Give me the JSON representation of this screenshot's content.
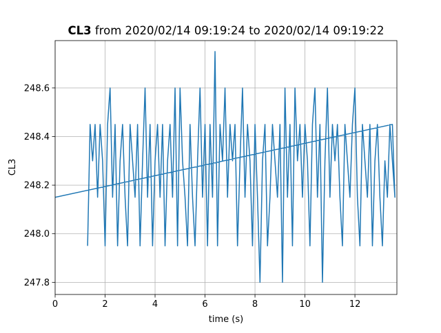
{
  "chart_data": {
    "type": "line",
    "title": {
      "bold": "CL3",
      "rest": "from 2020/02/14 09:19:24 to 2020/02/14 09:19:22"
    },
    "xlabel": "time (s)",
    "ylabel": "CL3",
    "xlim": [
      0,
      13.68
    ],
    "ylim": [
      247.75,
      248.795
    ],
    "xticks": [
      0,
      2,
      4,
      6,
      8,
      10,
      12
    ],
    "yticks": [
      247.8,
      {
        "value": 248,
        "label": "248.0"
      },
      248.2,
      248.4,
      248.6
    ],
    "grid": true,
    "series": [
      {
        "name": "CL3",
        "color": "#1f77b4",
        "x": [
          1.3,
          1.4,
          1.5,
          1.6,
          1.7,
          1.8,
          1.9,
          2.0,
          2.1,
          2.2,
          2.3,
          2.4,
          2.5,
          2.6,
          2.7,
          2.8,
          2.9,
          3.0,
          3.1,
          3.2,
          3.3,
          3.4,
          3.5,
          3.6,
          3.7,
          3.8,
          3.9,
          4.0,
          4.1,
          4.2,
          4.3,
          4.4,
          4.5,
          4.6,
          4.7,
          4.8,
          4.9,
          5.0,
          5.1,
          5.2,
          5.3,
          5.4,
          5.5,
          5.6,
          5.7,
          5.8,
          5.9,
          6.0,
          6.1,
          6.2,
          6.3,
          6.4,
          6.5,
          6.6,
          6.7,
          6.8,
          6.9,
          7.0,
          7.1,
          7.2,
          7.3,
          7.4,
          7.5,
          7.6,
          7.7,
          7.8,
          7.9,
          8.0,
          8.1,
          8.2,
          8.3,
          8.4,
          8.5,
          8.6,
          8.7,
          8.8,
          8.9,
          9.0,
          9.1,
          9.2,
          9.3,
          9.4,
          9.5,
          9.6,
          9.7,
          9.8,
          9.9,
          10.0,
          10.1,
          10.2,
          10.3,
          10.4,
          10.5,
          10.6,
          10.7,
          10.8,
          10.9,
          11.0,
          11.1,
          11.2,
          11.3,
          11.4,
          11.5,
          11.6,
          11.7,
          11.8,
          11.9,
          12.0,
          12.1,
          12.2,
          12.3,
          12.4,
          12.5,
          12.6,
          12.7,
          12.8,
          12.9,
          13.0,
          13.1,
          13.2,
          13.3,
          13.4,
          13.5,
          13.6,
          13.5,
          0
        ],
        "values": [
          247.95,
          248.45,
          248.3,
          248.45,
          248.15,
          248.45,
          248.3,
          247.95,
          248.45,
          248.6,
          248.15,
          248.45,
          247.95,
          248.3,
          248.45,
          248.15,
          247.95,
          248.45,
          248.3,
          248.15,
          248.45,
          247.95,
          248.3,
          248.6,
          248.15,
          248.45,
          247.95,
          248.3,
          248.45,
          248.15,
          248.45,
          247.95,
          248.3,
          248.45,
          248.15,
          248.6,
          247.95,
          248.6,
          248.3,
          248.15,
          247.95,
          248.45,
          248.15,
          247.95,
          248.3,
          248.6,
          248.15,
          248.45,
          247.95,
          248.45,
          248.15,
          248.75,
          247.95,
          248.45,
          248.3,
          248.6,
          248.15,
          248.45,
          248.3,
          248.45,
          247.95,
          248.3,
          248.6,
          248.15,
          248.45,
          248.3,
          247.95,
          248.45,
          248.15,
          247.8,
          248.3,
          248.45,
          247.95,
          248.15,
          248.45,
          248.3,
          248.15,
          248.45,
          247.8,
          248.6,
          248.15,
          248.45,
          247.95,
          248.6,
          248.3,
          248.45,
          248.15,
          248.45,
          248.3,
          247.95,
          248.45,
          248.6,
          248.15,
          248.45,
          247.8,
          248.3,
          248.6,
          248.15,
          248.45,
          248.3,
          248.45,
          248.15,
          247.95,
          248.45,
          248.3,
          248.15,
          248.45,
          248.6,
          248.15,
          247.95,
          248.45,
          248.3,
          248.15,
          248.45,
          247.95,
          248.3,
          248.45,
          248.15,
          247.95,
          248.3,
          248.15,
          248.45,
          248.3,
          248.15,
          248.45,
          248.15
        ]
      }
    ]
  }
}
